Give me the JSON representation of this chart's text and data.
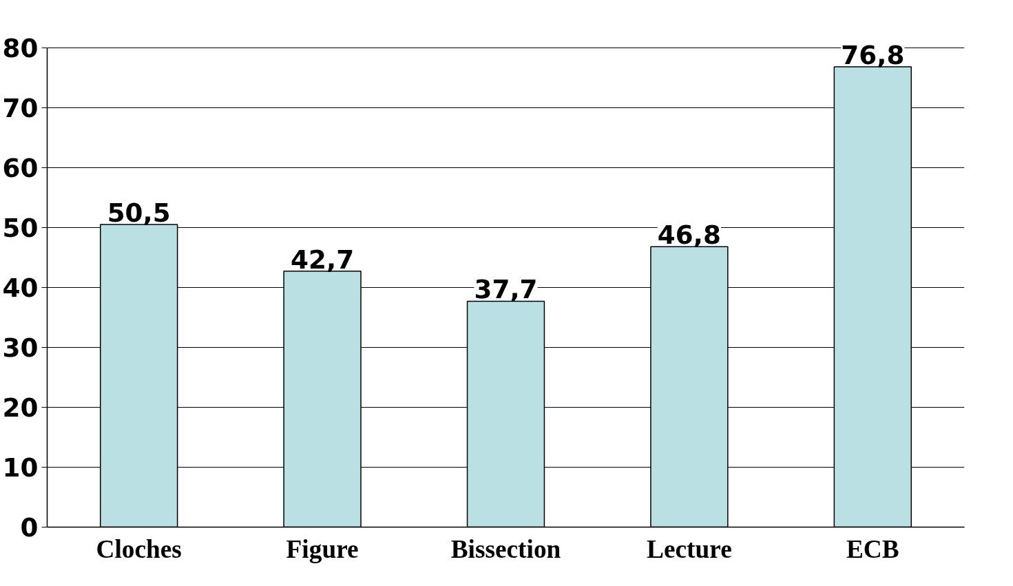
{
  "chart_data": {
    "type": "bar",
    "categories": [
      "Cloches",
      "Figure",
      "Bissection",
      "Lecture",
      "ECB"
    ],
    "values": [
      50.5,
      42.7,
      37.7,
      46.8,
      76.8
    ],
    "value_labels": [
      "50,5",
      "42,7",
      "37,7",
      "46,8",
      "76,8"
    ],
    "color": "#bbe0e3",
    "ylim": [
      0,
      80
    ],
    "yticks": [
      0,
      10,
      20,
      30,
      40,
      50,
      60,
      70,
      80
    ],
    "grid": "y"
  }
}
